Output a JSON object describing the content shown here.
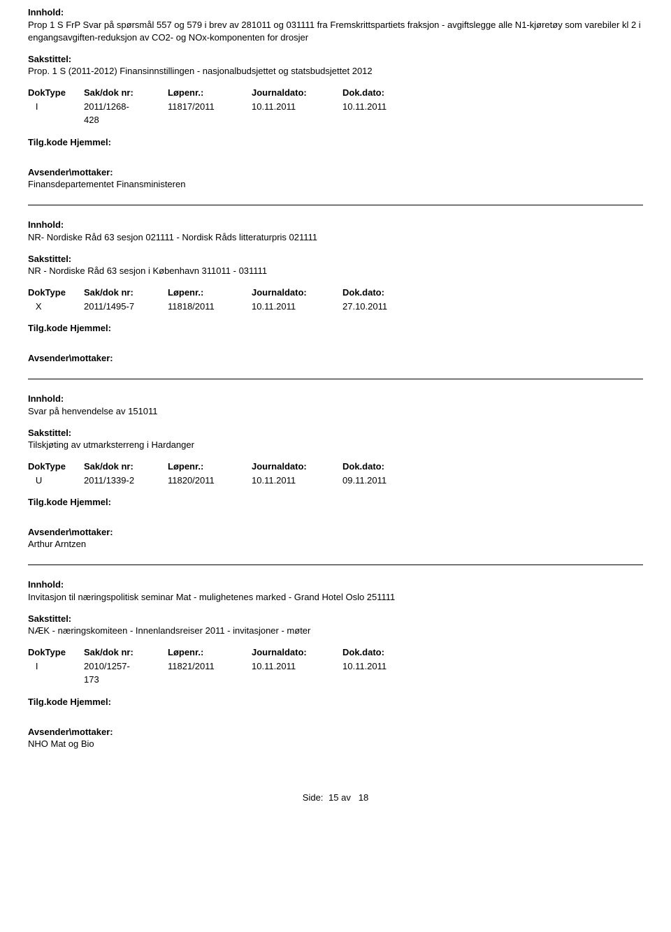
{
  "labels": {
    "innhold": "Innhold:",
    "sakstittel": "Sakstittel:",
    "doktype": "DokType",
    "sakdok": "Sak/dok nr:",
    "lopenr": "Løpenr.:",
    "journaldato": "Journaldato:",
    "dokdato": "Dok.dato:",
    "tilgkode": "Tilg.kode Hjemmel:",
    "avsender": "Avsender\\mottaker:",
    "side": "Side:",
    "av": "av"
  },
  "footer": {
    "page": "15",
    "total": "18"
  },
  "records": [
    {
      "innhold": "Prop 1 S FrP Svar på spørsmål 557 og 579 i brev av 281011 og 031111 fra Fremskrittspartiets fraksjon - avgiftslegge alle N1-kjøretøy som varebiler kl 2 i engangsavgiften-reduksjon av CO2- og NOx-komponenten for drosjer",
      "sakstittel": "Prop. 1 S (2011-2012) Finansinnstillingen - nasjonalbudsjettet og statsbudsjettet 2012",
      "doktype": "I",
      "sakdok_lines": [
        "2011/1268-",
        "428"
      ],
      "lopenr": "11817/2011",
      "journaldato": "10.11.2011",
      "dokdato": "10.11.2011",
      "avsender": "Finansdepartementet Finansministeren"
    },
    {
      "innhold": "NR- Nordiske Råd 63 sesjon 021111 - Nordisk Råds litteraturpris 021111",
      "sakstittel": "NR - Nordiske Råd 63 sesjon i København 311011 - 031111",
      "doktype": "X",
      "sakdok_lines": [
        "2011/1495-7"
      ],
      "lopenr": "11818/2011",
      "journaldato": "10.11.2011",
      "dokdato": "27.10.2011",
      "avsender": ""
    },
    {
      "innhold": "Svar på henvendelse av 151011",
      "sakstittel": "Tilskjøting av utmarksterreng i Hardanger",
      "doktype": "U",
      "sakdok_lines": [
        "2011/1339-2"
      ],
      "lopenr": "11820/2011",
      "journaldato": "10.11.2011",
      "dokdato": "09.11.2011",
      "avsender": "Arthur Arntzen"
    },
    {
      "innhold": "Invitasjon til næringspolitisk seminar Mat - mulighetenes marked  - Grand Hotel Oslo 251111",
      "sakstittel": "NÆK - næringskomiteen - Innenlandsreiser 2011 - invitasjoner - møter",
      "doktype": "I",
      "sakdok_lines": [
        "2010/1257-",
        "173"
      ],
      "lopenr": "11821/2011",
      "journaldato": "10.11.2011",
      "dokdato": "10.11.2011",
      "avsender": "NHO Mat og Bio"
    }
  ]
}
